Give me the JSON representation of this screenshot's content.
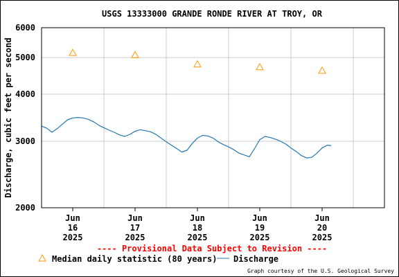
{
  "chart_data": {
    "type": "line",
    "title": "USGS 13333000 GRANDE RONDE RIVER AT TROY, OR",
    "ylabel": "Discharge, cubic feet per second",
    "xlabel": "",
    "yscale": "log",
    "ylim": [
      2000,
      6000
    ],
    "xlim": [
      "2025-06-15T12:00",
      "2025-06-21T00:00"
    ],
    "y_ticks": [
      2000,
      3000,
      4000,
      5000,
      6000
    ],
    "y_tick_labels": [
      "2000",
      "3000",
      "4000",
      "5000",
      "6000"
    ],
    "x_ticks": [
      {
        "x": "2025-06-16T00:00",
        "line1": "Jun",
        "line2": "16",
        "line3": "2025"
      },
      {
        "x": "2025-06-17T00:00",
        "line1": "Jun",
        "line2": "17",
        "line3": "2025"
      },
      {
        "x": "2025-06-18T00:00",
        "line1": "Jun",
        "line2": "18",
        "line3": "2025"
      },
      {
        "x": "2025-06-19T00:00",
        "line1": "Jun",
        "line2": "19",
        "line3": "2025"
      },
      {
        "x": "2025-06-20T00:00",
        "line1": "Jun",
        "line2": "20",
        "line3": "2025"
      }
    ],
    "grid": true,
    "series": [
      {
        "name": "Discharge",
        "kind": "line",
        "color": "#1f78b4",
        "points": [
          [
            "2025-06-15T12:00",
            3290
          ],
          [
            "2025-06-15T14:00",
            3250
          ],
          [
            "2025-06-15T16:00",
            3170
          ],
          [
            "2025-06-15T18:00",
            3240
          ],
          [
            "2025-06-15T20:00",
            3330
          ],
          [
            "2025-06-15T22:00",
            3420
          ],
          [
            "2025-06-16T00:00",
            3460
          ],
          [
            "2025-06-16T02:00",
            3470
          ],
          [
            "2025-06-16T04:00",
            3460
          ],
          [
            "2025-06-16T06:00",
            3430
          ],
          [
            "2025-06-16T08:00",
            3380
          ],
          [
            "2025-06-16T10:00",
            3310
          ],
          [
            "2025-06-16T12:00",
            3260
          ],
          [
            "2025-06-16T14:00",
            3210
          ],
          [
            "2025-06-16T16:00",
            3170
          ],
          [
            "2025-06-16T18:00",
            3120
          ],
          [
            "2025-06-16T20:00",
            3090
          ],
          [
            "2025-06-16T22:00",
            3130
          ],
          [
            "2025-06-17T00:00",
            3190
          ],
          [
            "2025-06-17T02:00",
            3220
          ],
          [
            "2025-06-17T04:00",
            3200
          ],
          [
            "2025-06-17T06:00",
            3180
          ],
          [
            "2025-06-17T08:00",
            3130
          ],
          [
            "2025-06-17T10:00",
            3060
          ],
          [
            "2025-06-17T12:00",
            2990
          ],
          [
            "2025-06-17T14:00",
            2930
          ],
          [
            "2025-06-17T16:00",
            2870
          ],
          [
            "2025-06-17T18:00",
            2810
          ],
          [
            "2025-06-17T20:00",
            2840
          ],
          [
            "2025-06-17T22:00",
            2960
          ],
          [
            "2025-06-18T00:00",
            3060
          ],
          [
            "2025-06-18T02:00",
            3110
          ],
          [
            "2025-06-18T04:00",
            3100
          ],
          [
            "2025-06-18T06:00",
            3060
          ],
          [
            "2025-06-18T08:00",
            2990
          ],
          [
            "2025-06-18T10:00",
            2940
          ],
          [
            "2025-06-18T12:00",
            2900
          ],
          [
            "2025-06-18T14:00",
            2850
          ],
          [
            "2025-06-18T16:00",
            2790
          ],
          [
            "2025-06-18T18:00",
            2760
          ],
          [
            "2025-06-18T20:00",
            2730
          ],
          [
            "2025-06-18T22:00",
            2870
          ],
          [
            "2025-06-19T00:00",
            3030
          ],
          [
            "2025-06-19T02:00",
            3090
          ],
          [
            "2025-06-19T04:00",
            3070
          ],
          [
            "2025-06-19T06:00",
            3040
          ],
          [
            "2025-06-19T08:00",
            3000
          ],
          [
            "2025-06-19T10:00",
            2950
          ],
          [
            "2025-06-19T12:00",
            2880
          ],
          [
            "2025-06-19T14:00",
            2820
          ],
          [
            "2025-06-19T16:00",
            2750
          ],
          [
            "2025-06-19T18:00",
            2710
          ],
          [
            "2025-06-19T20:00",
            2720
          ],
          [
            "2025-06-19T22:00",
            2790
          ],
          [
            "2025-06-20T00:00",
            2880
          ],
          [
            "2025-06-20T02:00",
            2930
          ],
          [
            "2025-06-20T03:30",
            2920
          ]
        ]
      },
      {
        "name": "Median daily statistic (80 years)",
        "kind": "marker",
        "color": "#ff9900",
        "points": [
          [
            "2025-06-16T00:00",
            5150
          ],
          [
            "2025-06-17T00:00",
            5080
          ],
          [
            "2025-06-18T00:00",
            4800
          ],
          [
            "2025-06-19T00:00",
            4720
          ],
          [
            "2025-06-20T00:00",
            4620
          ]
        ]
      }
    ],
    "legend": {
      "placement": "bottom",
      "items": [
        {
          "label": "Median daily statistic (80 years)",
          "symbol": "triangle"
        },
        {
          "label": "Discharge",
          "symbol": "line"
        }
      ]
    },
    "annotations": {
      "provisional": "---- Provisional Data Subject to Revision ----",
      "credit": "Graph courtesy of the U.S. Geological Survey"
    },
    "colors": {
      "grid": "#cccccc",
      "provisional": "#ff0000"
    }
  }
}
